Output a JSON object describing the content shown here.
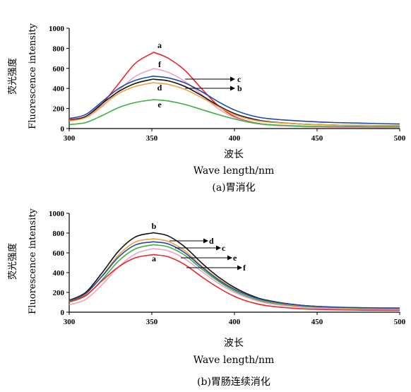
{
  "chart_data": [
    {
      "type": "line",
      "caption": "(a)胃消化",
      "xlabel_cn": "波长",
      "xlabel_en": "Wave length/nm",
      "ylabel_cn": "荧光强度",
      "ylabel_en": "Fluorescence intensity",
      "xlim": [
        300,
        500
      ],
      "ylim": [
        0,
        1000
      ],
      "x_ticks": [
        "300",
        "350",
        "400",
        "450",
        "500"
      ],
      "y_ticks": [
        "0",
        "200",
        "400",
        "600",
        "800",
        "1000"
      ],
      "series": [
        {
          "name": "a",
          "color": "#e8282a",
          "x": [
            300,
            310,
            320,
            330,
            340,
            350,
            352,
            360,
            370,
            380,
            390,
            400,
            410,
            420,
            440,
            460,
            480,
            500
          ],
          "y": [
            90,
            120,
            250,
            450,
            650,
            750,
            755,
            700,
            580,
            400,
            230,
            120,
            65,
            40,
            20,
            15,
            12,
            10
          ]
        },
        {
          "name": "f",
          "color": "#f2a0c8",
          "x": [
            300,
            310,
            320,
            330,
            340,
            350,
            352,
            360,
            370,
            380,
            390,
            400,
            410,
            420,
            440,
            460,
            480,
            500
          ],
          "y": [
            85,
            110,
            220,
            380,
            520,
            590,
            595,
            560,
            470,
            340,
            200,
            110,
            60,
            35,
            20,
            15,
            12,
            10
          ]
        },
        {
          "name": "c",
          "color": "#1f4aa8",
          "x": [
            300,
            310,
            320,
            330,
            340,
            350,
            352,
            360,
            370,
            380,
            390,
            400,
            410,
            420,
            440,
            460,
            480,
            500
          ],
          "y": [
            100,
            140,
            270,
            400,
            480,
            520,
            520,
            505,
            455,
            370,
            270,
            185,
            130,
            100,
            75,
            60,
            52,
            45
          ]
        },
        {
          "name": "b",
          "color": "#111111",
          "x": [
            300,
            310,
            320,
            330,
            340,
            350,
            352,
            360,
            370,
            380,
            390,
            400,
            410,
            420,
            440,
            460,
            480,
            500
          ],
          "y": [
            80,
            120,
            250,
            370,
            450,
            490,
            490,
            475,
            420,
            330,
            230,
            150,
            100,
            70,
            45,
            35,
            30,
            28
          ]
        },
        {
          "name": "d",
          "color": "#f0a040",
          "x": [
            300,
            310,
            320,
            330,
            340,
            350,
            352,
            360,
            370,
            380,
            390,
            400,
            410,
            420,
            440,
            460,
            480,
            500
          ],
          "y": [
            75,
            110,
            230,
            350,
            420,
            455,
            455,
            440,
            390,
            310,
            220,
            140,
            90,
            65,
            45,
            35,
            30,
            28
          ]
        },
        {
          "name": "e",
          "color": "#3cb043",
          "x": [
            300,
            310,
            320,
            330,
            340,
            350,
            352,
            360,
            370,
            380,
            390,
            400,
            410,
            420,
            440,
            460,
            480,
            500
          ],
          "y": [
            40,
            60,
            130,
            210,
            260,
            285,
            287,
            275,
            240,
            190,
            140,
            95,
            60,
            40,
            25,
            20,
            18,
            18
          ]
        }
      ]
    },
    {
      "type": "line",
      "caption": "(b)胃肠连续消化",
      "xlabel_cn": "波长",
      "xlabel_en": "Wave length/nm",
      "ylabel_cn": "荧光强度",
      "ylabel_en": "Fluorescence intensity",
      "xlim": [
        300,
        500
      ],
      "ylim": [
        0,
        1000
      ],
      "x_ticks": [
        "300",
        "350",
        "400",
        "450",
        "500"
      ],
      "y_ticks": [
        "0",
        "200",
        "400",
        "600",
        "800",
        "1000"
      ],
      "series": [
        {
          "name": "b",
          "color": "#111111",
          "x": [
            300,
            310,
            320,
            330,
            340,
            350,
            352,
            360,
            370,
            380,
            390,
            400,
            410,
            420,
            440,
            460,
            480,
            500
          ],
          "y": [
            120,
            200,
            400,
            620,
            760,
            800,
            800,
            770,
            660,
            500,
            360,
            250,
            170,
            120,
            70,
            50,
            42,
            38
          ]
        },
        {
          "name": "d",
          "color": "#f0a040",
          "x": [
            300,
            310,
            320,
            330,
            340,
            350,
            352,
            360,
            370,
            380,
            390,
            400,
            410,
            420,
            440,
            460,
            480,
            500
          ],
          "y": [
            110,
            185,
            370,
            580,
            710,
            740,
            740,
            715,
            620,
            470,
            340,
            235,
            160,
            110,
            60,
            45,
            38,
            35
          ]
        },
        {
          "name": "c",
          "color": "#1f4aa8",
          "x": [
            300,
            310,
            320,
            330,
            340,
            350,
            352,
            360,
            370,
            380,
            390,
            400,
            410,
            420,
            440,
            460,
            480,
            500
          ],
          "y": [
            115,
            190,
            365,
            560,
            680,
            710,
            710,
            690,
            600,
            460,
            330,
            230,
            160,
            115,
            70,
            52,
            45,
            42
          ]
        },
        {
          "name": "e",
          "color": "#3cb043",
          "x": [
            300,
            310,
            320,
            330,
            340,
            350,
            352,
            360,
            370,
            380,
            390,
            400,
            410,
            420,
            440,
            460,
            480,
            500
          ],
          "y": [
            100,
            165,
            330,
            520,
            640,
            680,
            680,
            660,
            575,
            440,
            315,
            215,
            145,
            100,
            55,
            40,
            32,
            30
          ]
        },
        {
          "name": "f",
          "color": "#f2a0c8",
          "x": [
            300,
            310,
            320,
            330,
            340,
            350,
            352,
            360,
            370,
            380,
            390,
            400,
            410,
            420,
            440,
            460,
            480,
            500
          ],
          "y": [
            75,
            130,
            280,
            460,
            590,
            640,
            640,
            620,
            540,
            415,
            295,
            200,
            135,
            90,
            50,
            35,
            28,
            25
          ]
        },
        {
          "name": "a",
          "color": "#e8282a",
          "x": [
            300,
            310,
            320,
            330,
            340,
            350,
            352,
            360,
            370,
            380,
            390,
            400,
            410,
            420,
            440,
            460,
            480,
            500
          ],
          "y": [
            110,
            170,
            320,
            460,
            550,
            580,
            580,
            560,
            480,
            360,
            250,
            160,
            100,
            65,
            35,
            25,
            20,
            18
          ]
        }
      ]
    }
  ]
}
